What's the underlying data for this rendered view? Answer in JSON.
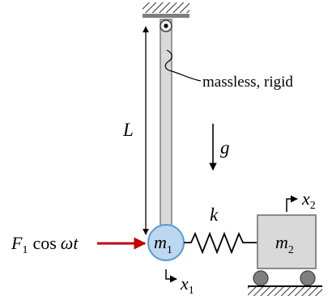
{
  "labels": {
    "note": "massless, rigid",
    "length": "L",
    "gravity": "g",
    "spring_constant": "k",
    "force_F": "F",
    "force_sub": "1",
    "force_cos": "cos",
    "force_omega_t": "ωt",
    "mass1": "m",
    "mass1_sub": "1",
    "mass2": "m",
    "mass2_sub": "2",
    "x1": "x",
    "x1_sub": "1",
    "x2": "x",
    "x2_sub": "2"
  },
  "colors": {
    "force_arrow": "#c00000",
    "mass1_fill": "#bdd7ee",
    "mass1_stroke": "#5b9bd5",
    "rod_fill": "#d9d9d9",
    "block_fill": "#d9d9d9",
    "wheel_fill": "#7f7f7f",
    "line": "#000000"
  }
}
